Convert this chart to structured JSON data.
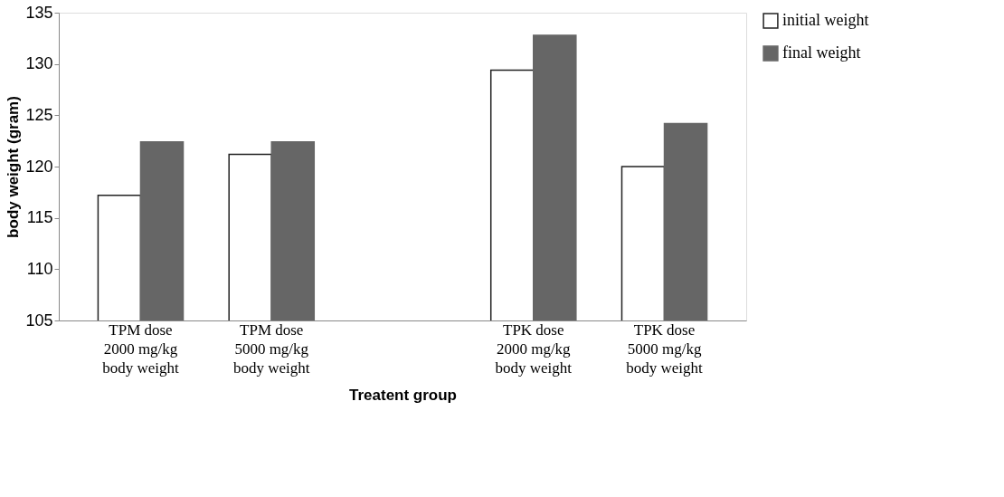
{
  "chart_data": {
    "type": "bar",
    "xlabel": "Treatent group",
    "ylabel": "body weight (gram)",
    "categories": [
      "TPM dose\n2000 mg/kg\nbody weight",
      "TPM dose\n5000 mg/kg\nbody weight",
      null,
      "TPK dose\n2000 mg/kg\nbody weight",
      "TPK dose\n5000 mg/kg\nbody weight"
    ],
    "series": [
      {
        "name": "initial weight",
        "color": "#ffffff",
        "values": [
          117.2,
          121.2,
          null,
          129.4,
          120.0
        ]
      },
      {
        "name": "final weight",
        "color": "#666666",
        "values": [
          122.4,
          122.4,
          null,
          132.8,
          124.2
        ]
      }
    ],
    "ylim": [
      105,
      135
    ],
    "yticks": [
      105,
      110,
      115,
      120,
      125,
      130,
      135
    ],
    "grid": false,
    "legend": "right"
  }
}
